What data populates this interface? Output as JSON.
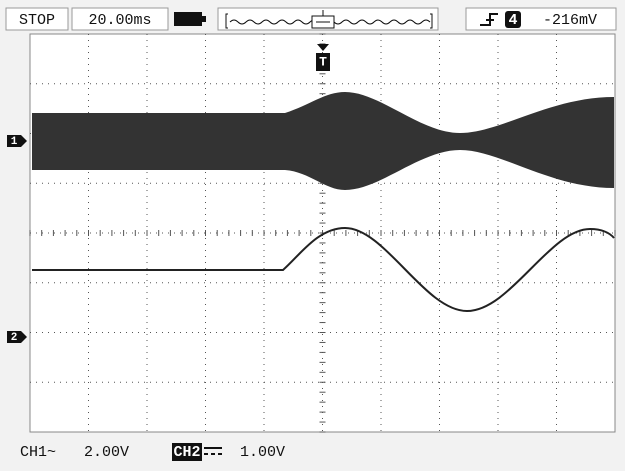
{
  "status": "STOP",
  "timebase": "20.00ms",
  "trigger": {
    "channel": "4",
    "level": "-216mV"
  },
  "trigger_marker": "T",
  "channel_markers": [
    "1",
    "2"
  ],
  "channels": [
    {
      "name": "CH1~",
      "scale": "2.00V"
    },
    {
      "name": "CH2",
      "scale": "1.00V"
    }
  ]
}
